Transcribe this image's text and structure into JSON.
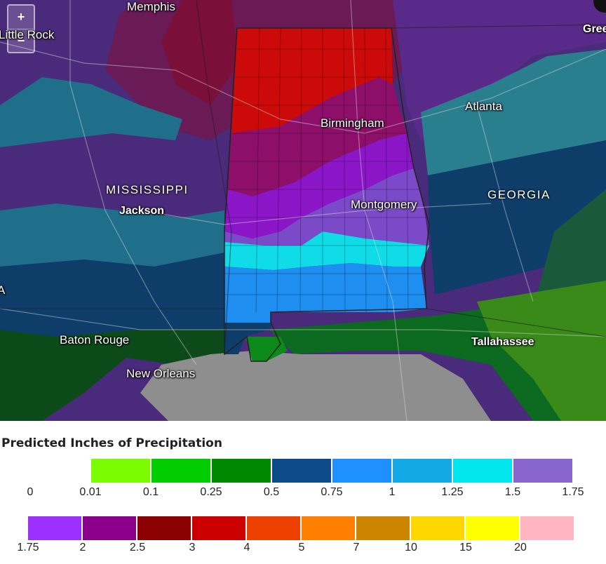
{
  "map": {
    "zoom_in_label": "+",
    "zoom_out_label": "−",
    "cities": {
      "memphis": "Memphis",
      "little_rock": "Little Rock",
      "greenville": "Gree",
      "birmingham": "Birmingham",
      "atlanta": "Atlanta",
      "montgomery": "Montgomery",
      "jackson": "Jackson",
      "baton_rouge": "Baton Rouge",
      "new_orleans": "New Orleans",
      "tallahassee": "Tallahassee",
      "edge_a": "A"
    },
    "states": {
      "mississippi": "MISSISSIPPI",
      "georgia": "GEORGIA"
    }
  },
  "legend": {
    "title": "Predicted Inches of Precipitation",
    "row1": {
      "colors": [
        "#7cfc00",
        "#00cc00",
        "#008800",
        "#0d4a8a",
        "#1e90ff",
        "#12a9e6",
        "#00e5ee",
        "#8866cc"
      ],
      "ticks": [
        "0",
        "0.01",
        "0.1",
        "0.25",
        "0.5",
        "0.75",
        "1",
        "1.25",
        "1.5",
        "1.75"
      ]
    },
    "row2": {
      "colors": [
        "#9b30ff",
        "#8b008b",
        "#8b0000",
        "#cd0000",
        "#ee4000",
        "#ff7f00",
        "#cd8500",
        "#ffd700",
        "#ffff00",
        "#ffb6c1"
      ],
      "ticks": [
        "1.75",
        "2",
        "2.5",
        "3",
        "4",
        "5",
        "7",
        "10",
        "15",
        "20"
      ]
    }
  }
}
